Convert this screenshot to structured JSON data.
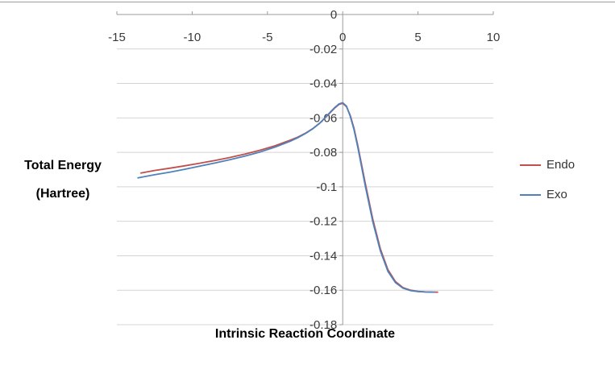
{
  "page": {
    "background": "#ffffff"
  },
  "chart_data": {
    "type": "line",
    "title": "",
    "xlabel": "Intrinsic Reaction Coordinate",
    "ylabel": "Total Energy\n(Hartree)",
    "xlim": [
      -15,
      10
    ],
    "ylim": [
      -0.18,
      0
    ],
    "x_ticks": [
      -15,
      -10,
      -5,
      0,
      5,
      10
    ],
    "x_tick_labels": [
      "-15",
      "-10",
      "-5",
      "0",
      "5",
      "10"
    ],
    "y_ticks": [
      0,
      -0.02,
      -0.04,
      -0.06,
      -0.08,
      -0.1,
      -0.12,
      -0.14,
      -0.16,
      -0.18
    ],
    "y_tick_labels": [
      "0",
      "-0.02",
      "-0.04",
      "-0.06",
      "-0.08",
      "-0.1",
      "-0.12",
      "-0.14",
      "-0.16",
      "-0.18"
    ],
    "grid": "horizontal-only",
    "legend_position": "right",
    "colors": {
      "grid": "#d4d4d4",
      "axis": "#9b9b9b",
      "tick_text": "#3a3a3a"
    },
    "series": [
      {
        "name": "Endo",
        "color": "#C0504D",
        "x": [
          -13.4,
          -12.5,
          -11.5,
          -10.5,
          -9.5,
          -8.5,
          -7.5,
          -6.5,
          -5.5,
          -4.5,
          -3.5,
          -3,
          -2.5,
          -2,
          -1.5,
          -1,
          -0.75,
          -0.5,
          -0.25,
          0,
          0.25,
          0.5,
          0.75,
          1,
          1.5,
          2,
          2.5,
          3,
          3.5,
          4,
          4.5,
          5,
          5.5,
          6,
          6.3
        ],
        "y": [
          -0.092,
          -0.0905,
          -0.0892,
          -0.0878,
          -0.0863,
          -0.0847,
          -0.083,
          -0.081,
          -0.0788,
          -0.0762,
          -0.073,
          -0.0712,
          -0.069,
          -0.0663,
          -0.0628,
          -0.0585,
          -0.0562,
          -0.054,
          -0.0522,
          -0.0515,
          -0.0535,
          -0.0585,
          -0.066,
          -0.076,
          -0.098,
          -0.119,
          -0.136,
          -0.148,
          -0.155,
          -0.1585,
          -0.16,
          -0.1607,
          -0.161,
          -0.1611,
          -0.1611
        ]
      },
      {
        "name": "Exo",
        "color": "#4F81BD",
        "x": [
          -13.6,
          -12.5,
          -11.5,
          -10.5,
          -9.5,
          -8.5,
          -7.5,
          -6.5,
          -5.5,
          -4.5,
          -3.5,
          -3,
          -2.5,
          -2,
          -1.5,
          -1,
          -0.75,
          -0.5,
          -0.25,
          0,
          0.25,
          0.5,
          0.75,
          1,
          1.5,
          2,
          2.5,
          3,
          3.5,
          4,
          4.5,
          5,
          5.5,
          6,
          6.1
        ],
        "y": [
          -0.0948,
          -0.093,
          -0.0915,
          -0.0898,
          -0.088,
          -0.0862,
          -0.0843,
          -0.0822,
          -0.0798,
          -0.077,
          -0.0736,
          -0.0716,
          -0.0692,
          -0.0664,
          -0.0629,
          -0.0583,
          -0.0559,
          -0.0537,
          -0.0519,
          -0.0512,
          -0.0532,
          -0.059,
          -0.0668,
          -0.077,
          -0.0995,
          -0.1205,
          -0.1372,
          -0.149,
          -0.1556,
          -0.1588,
          -0.1602,
          -0.1608,
          -0.161,
          -0.1611,
          -0.1611
        ]
      }
    ]
  }
}
